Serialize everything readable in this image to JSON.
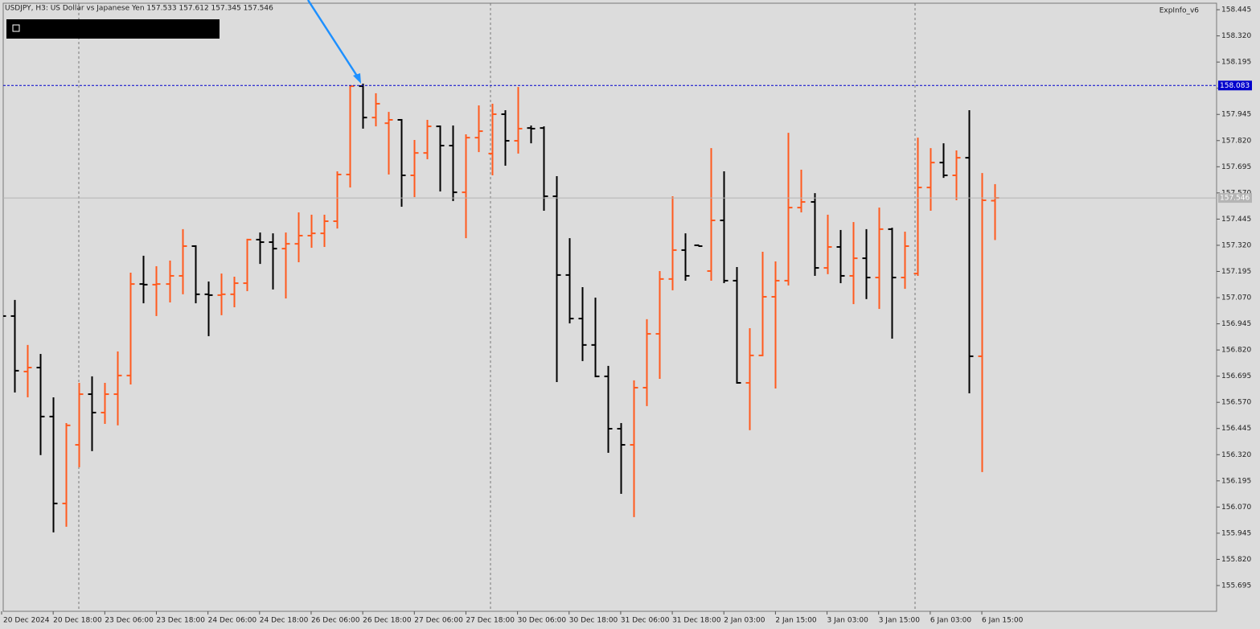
{
  "chart_data": {
    "type": "ohlc",
    "title": "USDJPY, H3:  US Dollar vs Japanese Yen  157.533 157.612 157.345 157.546",
    "indicator_label": "ExpInfo_v6",
    "up_color": "#ff5a1e",
    "down_color": "#000000",
    "categories": [
      "20 Dec 2024",
      null,
      null,
      null,
      "20 Dec 18:00",
      null,
      null,
      null,
      "23 Dec 06:00",
      null,
      null,
      null,
      "23 Dec 18:00",
      null,
      null,
      null,
      "24 Dec 06:00",
      null,
      null,
      null,
      "24 Dec 18:00",
      null,
      null,
      null,
      "26 Dec 06:00",
      null,
      null,
      null,
      "26 Dec 18:00",
      null,
      null,
      null,
      "27 Dec 06:00",
      null,
      null,
      null,
      "27 Dec 18:00",
      null,
      null,
      null,
      "30 Dec 06:00",
      null,
      null,
      null,
      "30 Dec 18:00",
      null,
      null,
      null,
      "31 Dec 06:00",
      null,
      null,
      null,
      "31 Dec 18:00",
      null,
      null,
      null,
      "2 Jan 03:00",
      null,
      null,
      null,
      "2 Jan 15:00",
      null,
      null,
      null,
      "3 Jan 03:00",
      null,
      null,
      null,
      "3 Jan 15:00",
      null,
      null,
      null,
      "6 Jan 03:00",
      null,
      null,
      null,
      "6 Jan 15:00",
      null
    ],
    "open": [
      157.013,
      156.982,
      156.717,
      156.736,
      156.502,
      156.087,
      156.367,
      156.609,
      156.521,
      156.609,
      156.698,
      157.135,
      157.132,
      157.135,
      157.174,
      157.316,
      157.086,
      157.082,
      157.086,
      157.139,
      157.347,
      157.335,
      157.304,
      157.327,
      157.366,
      157.377,
      157.435,
      157.658,
      158.08,
      157.93,
      157.903,
      157.919,
      157.654,
      157.761,
      157.888,
      157.796,
      157.573,
      157.834,
      157.758,
      157.946,
      157.819,
      157.88,
      157.88,
      157.554,
      157.178,
      156.97,
      156.844,
      156.694,
      156.444,
      156.367,
      156.64,
      156.897,
      157.159,
      157.297,
      157.32,
      157.197,
      157.439,
      157.151,
      156.663,
      156.794,
      157.074,
      157.151,
      157.5,
      157.527,
      157.212,
      157.312,
      157.174,
      157.258,
      157.166,
      157.397,
      157.166,
      157.185,
      157.596,
      157.715,
      157.654,
      157.738,
      156.79,
      157.533
    ],
    "high": [
      157.032,
      157.059,
      156.844,
      156.801,
      156.594,
      156.471,
      156.663,
      156.694,
      156.663,
      156.813,
      157.189,
      157.27,
      157.22,
      157.247,
      157.397,
      157.32,
      157.147,
      157.185,
      157.17,
      157.351,
      157.381,
      157.377,
      157.381,
      157.477,
      157.466,
      157.466,
      157.673,
      158.083,
      158.092,
      158.046,
      157.957,
      157.923,
      157.823,
      157.919,
      157.892,
      157.892,
      157.85,
      157.988,
      157.996,
      157.965,
      158.076,
      157.892,
      157.888,
      157.65,
      157.354,
      157.12,
      157.07,
      156.744,
      156.471,
      156.675,
      156.967,
      157.197,
      157.554,
      157.377,
      157.324,
      157.784,
      157.673,
      157.216,
      156.924,
      157.289,
      157.243,
      157.857,
      157.681,
      157.569,
      157.466,
      157.393,
      157.431,
      157.397,
      157.5,
      157.404,
      157.385,
      157.834,
      157.784,
      157.807,
      157.773,
      157.965,
      157.665,
      157.612
    ],
    "low": [
      156.955,
      156.617,
      156.594,
      156.318,
      155.949,
      155.976,
      156.26,
      156.337,
      156.467,
      156.46,
      156.655,
      157.043,
      156.982,
      157.047,
      157.086,
      157.043,
      156.886,
      156.986,
      157.024,
      157.101,
      157.231,
      157.109,
      157.066,
      157.239,
      157.308,
      157.312,
      157.4,
      157.596,
      157.877,
      157.888,
      157.658,
      157.504,
      157.55,
      157.731,
      157.577,
      157.531,
      157.354,
      157.765,
      157.654,
      157.7,
      157.758,
      157.807,
      157.485,
      156.667,
      156.947,
      156.767,
      156.69,
      156.329,
      156.133,
      156.022,
      156.552,
      156.682,
      157.105,
      157.151,
      157.316,
      157.151,
      157.139,
      156.659,
      156.437,
      156.79,
      156.636,
      157.128,
      157.477,
      157.174,
      157.182,
      157.139,
      157.039,
      157.063,
      157.016,
      156.874,
      157.112,
      157.174,
      157.485,
      157.642,
      157.535,
      156.613,
      156.237,
      157.345
    ],
    "close": [
      156.982,
      156.721,
      156.736,
      156.502,
      156.087,
      156.46,
      156.609,
      156.521,
      156.609,
      156.698,
      157.135,
      157.132,
      157.135,
      157.174,
      157.316,
      157.086,
      157.082,
      157.086,
      157.139,
      157.347,
      157.335,
      157.304,
      157.327,
      157.366,
      157.377,
      157.435,
      157.658,
      158.08,
      157.93,
      157.996,
      157.919,
      157.654,
      157.761,
      157.888,
      157.796,
      157.573,
      157.834,
      157.865,
      157.946,
      157.819,
      157.877,
      157.877,
      157.554,
      157.178,
      156.97,
      156.844,
      156.694,
      156.444,
      156.367,
      156.64,
      156.897,
      157.159,
      157.297,
      157.174,
      157.316,
      157.439,
      157.151,
      156.663,
      156.794,
      157.074,
      157.151,
      157.5,
      157.527,
      157.212,
      157.312,
      157.174,
      157.258,
      157.166,
      157.397,
      157.166,
      157.316,
      157.596,
      157.715,
      157.654,
      157.738,
      156.79,
      157.535,
      157.546
    ],
    "ylim": [
      155.572,
      158.476
    ],
    "yticks": [
      158.445,
      {
        "value": 158.32,
        "label": "158.320"
      },
      158.195,
      {
        "value": 158.07,
        "label": "158.070"
      },
      157.945,
      {
        "value": 157.82,
        "label": "157.820"
      },
      157.695,
      {
        "value": 157.57,
        "label": "157.570"
      },
      157.445,
      {
        "value": 157.32,
        "label": "157.320"
      },
      157.195,
      {
        "value": 157.07,
        "label": "157.070"
      },
      156.945,
      {
        "value": 156.82,
        "label": "156.820"
      },
      156.695,
      {
        "value": 156.57,
        "label": "156.570"
      },
      156.445,
      {
        "value": 156.32,
        "label": "156.320"
      },
      156.195,
      {
        "value": 156.07,
        "label": "156.070"
      },
      155.945,
      {
        "value": 155.82,
        "label": "155.820"
      },
      155.695
    ],
    "hlines": [
      {
        "value": 158.083,
        "color": "#0000cc",
        "dashed": true
      },
      {
        "value": 157.546,
        "color": "#b4b4b4",
        "dashed": false
      }
    ]
  }
}
